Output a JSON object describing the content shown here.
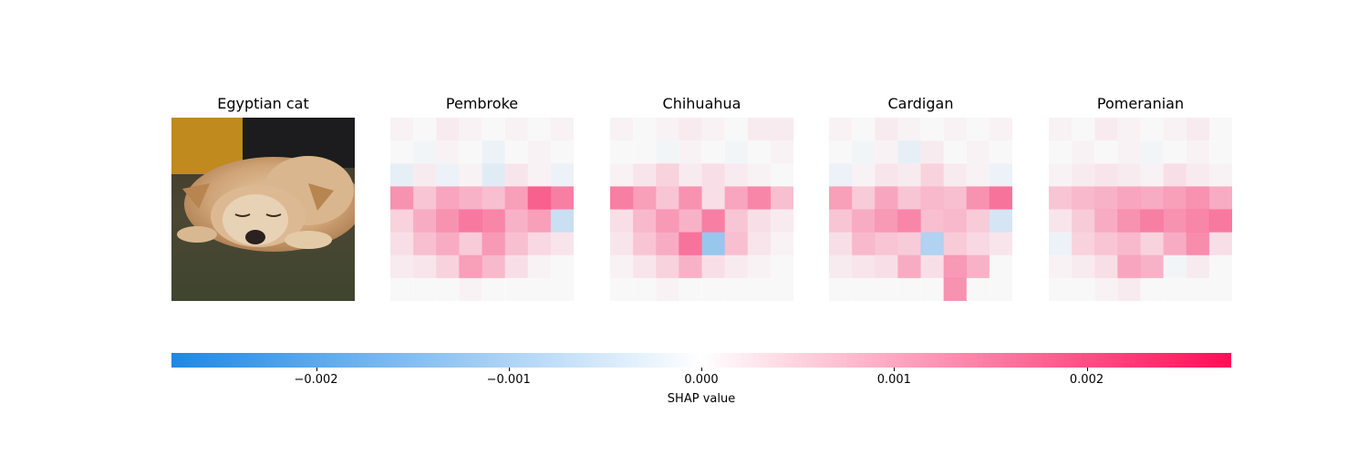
{
  "chart_data": {
    "type": "heatmap",
    "grid": [
      8,
      8
    ],
    "input_title": "Egyptian cat",
    "colorbar": {
      "label": "SHAP value",
      "range": [
        -0.00275,
        0.00275
      ],
      "ticks": [
        -0.002,
        -0.001,
        0.0,
        0.001,
        0.002
      ],
      "tick_labels": [
        "−0.002",
        "−0.001",
        "0.000",
        "0.001",
        "0.002"
      ],
      "colors": {
        "negative": "#1e88e5",
        "zero": "#ffffff",
        "positive": "#ff0d57"
      }
    },
    "panels": [
      {
        "title": "Pembroke",
        "values": [
          [
            0.0001,
            0.0,
            0.0002,
            0.0001,
            0.0,
            0.0001,
            0.0,
            0.0001
          ],
          [
            0.0,
            -0.0001,
            0.0001,
            0.0,
            -0.0002,
            0.0,
            0.0001,
            0.0
          ],
          [
            -0.0003,
            0.0002,
            -0.0002,
            0.0001,
            -0.0004,
            0.0003,
            0.0001,
            -0.0002
          ],
          [
            0.0016,
            0.0008,
            0.0013,
            0.0011,
            0.0009,
            0.0014,
            0.0024,
            0.0019
          ],
          [
            0.0006,
            0.0012,
            0.0016,
            0.002,
            0.0018,
            0.0011,
            0.0014,
            -0.0008
          ],
          [
            0.0004,
            0.0009,
            0.0012,
            0.0007,
            0.0015,
            0.0009,
            0.0005,
            0.0003
          ],
          [
            0.0002,
            0.0003,
            0.0006,
            0.0014,
            0.001,
            0.0004,
            0.0001,
            0.0
          ],
          [
            0.0,
            0.0,
            0.0,
            0.0001,
            0.0,
            0.0,
            0.0,
            0.0
          ]
        ]
      },
      {
        "title": "Chihuahua",
        "values": [
          [
            0.0001,
            0.0,
            0.0001,
            0.0002,
            0.0001,
            0.0,
            0.0002,
            0.0002
          ],
          [
            0.0,
            0.0,
            -0.0001,
            0.0001,
            0.0,
            -0.0001,
            0.0,
            0.0001
          ],
          [
            0.0001,
            0.0003,
            0.0006,
            0.0002,
            0.0004,
            0.0002,
            0.0001,
            0.0
          ],
          [
            0.0019,
            0.0014,
            0.0008,
            0.0016,
            0.0004,
            0.0013,
            0.0018,
            0.0009
          ],
          [
            0.0004,
            0.001,
            0.0015,
            0.0011,
            0.0019,
            0.0008,
            0.0004,
            0.0002
          ],
          [
            0.0003,
            0.0008,
            0.0012,
            0.0021,
            -0.0016,
            0.0009,
            0.0003,
            0.0001
          ],
          [
            0.0001,
            0.0003,
            0.0006,
            0.0011,
            0.0004,
            0.0002,
            0.0001,
            0.0
          ],
          [
            0.0,
            0.0,
            0.0001,
            0.0,
            0.0,
            0.0,
            0.0,
            0.0
          ]
        ]
      },
      {
        "title": "Cardigan",
        "values": [
          [
            0.0001,
            0.0,
            0.0002,
            0.0001,
            0.0,
            0.0001,
            0.0,
            0.0001
          ],
          [
            0.0,
            -0.0001,
            0.0001,
            -0.0003,
            0.0002,
            0.0,
            0.0001,
            0.0
          ],
          [
            -0.0002,
            0.0001,
            0.0003,
            0.0002,
            0.0006,
            0.0002,
            0.0001,
            -0.0002
          ],
          [
            0.0014,
            0.0007,
            0.0013,
            0.0008,
            0.001,
            0.0009,
            0.0016,
            0.0021
          ],
          [
            0.0008,
            0.0012,
            0.0015,
            0.0018,
            0.0009,
            0.001,
            0.0007,
            -0.0006
          ],
          [
            0.0004,
            0.001,
            0.0008,
            0.0007,
            -0.0012,
            0.0007,
            0.0005,
            0.0003
          ],
          [
            0.0002,
            0.0003,
            0.0004,
            0.0012,
            0.0004,
            0.0015,
            0.0011,
            0.0
          ],
          [
            0.0,
            0.0,
            0.0,
            0.0,
            0.0,
            0.0016,
            0.0,
            0.0
          ]
        ]
      },
      {
        "title": "Pomeranian",
        "values": [
          [
            0.0001,
            0.0,
            0.0002,
            0.0001,
            0.0,
            0.0001,
            0.0002,
            0.0
          ],
          [
            0.0,
            0.0001,
            0.0,
            0.0001,
            -0.0001,
            0.0,
            0.0001,
            0.0
          ],
          [
            0.0001,
            0.0002,
            0.0003,
            0.0002,
            0.0001,
            0.0004,
            0.0002,
            0.0001
          ],
          [
            0.0008,
            0.001,
            0.0011,
            0.0013,
            0.0012,
            0.0014,
            0.0016,
            0.0012
          ],
          [
            0.0003,
            0.0007,
            0.0012,
            0.0016,
            0.0019,
            0.0016,
            0.0018,
            0.002
          ],
          [
            -0.0002,
            0.0006,
            0.0008,
            0.001,
            0.0006,
            0.0012,
            0.0017,
            0.0004
          ],
          [
            0.0001,
            0.0002,
            0.0004,
            0.0013,
            0.0011,
            -0.0001,
            0.0002,
            0.0
          ],
          [
            0.0,
            0.0,
            0.0001,
            0.0002,
            0.0,
            0.0,
            0.0,
            0.0
          ]
        ]
      }
    ]
  }
}
